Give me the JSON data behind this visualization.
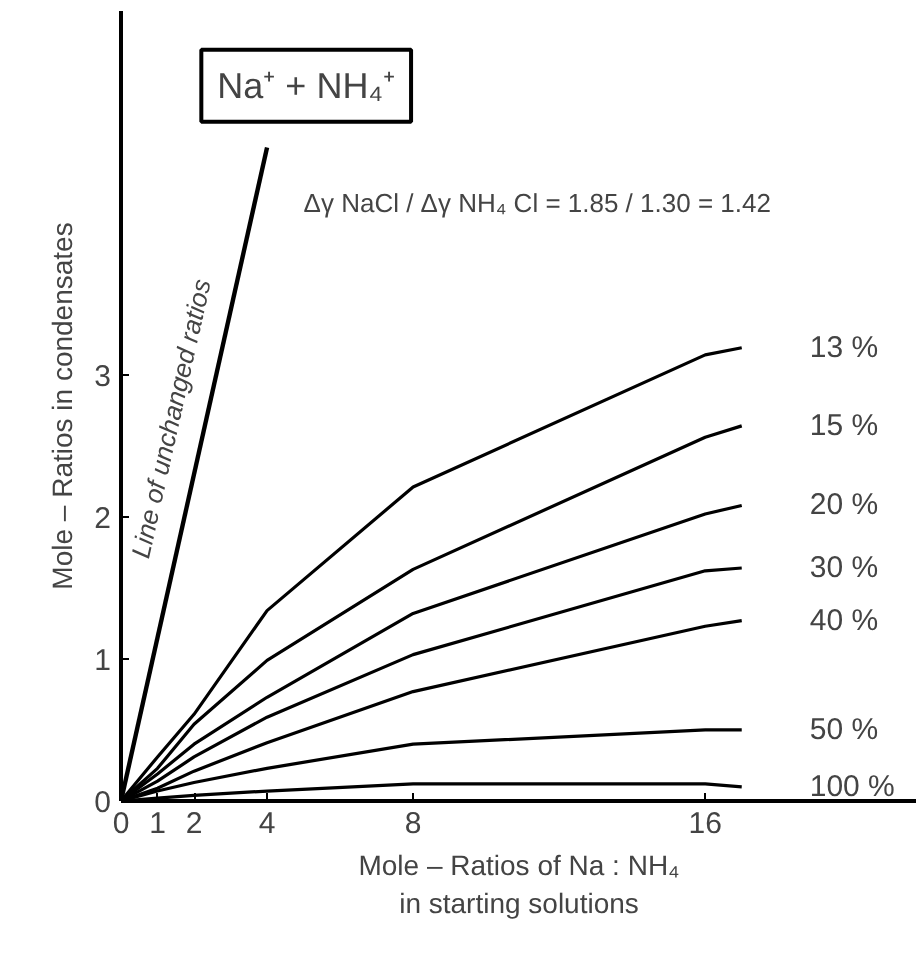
{
  "chart_data": {
    "type": "line",
    "xlabel": "Mole – Ratios of Na : NH₄\nin starting solutions",
    "ylabel": "Mole – Ratios in condensates",
    "xlim": [
      0,
      21.8
    ],
    "ylim": [
      0,
      5.56
    ],
    "xticks": [
      0,
      1,
      2,
      4,
      8,
      16
    ],
    "yticks": [
      0,
      1,
      2,
      3
    ],
    "grid": false,
    "marker": "none",
    "line_style": "solid",
    "annotations": [
      "Na⁺ + NH₄⁺",
      "Δγ NaCl / Δγ NH₄ Cl = 1.85 / 1.30 = 1.42"
    ],
    "x": [
      0,
      1,
      2,
      4,
      8,
      16,
      17
    ],
    "series": [
      {
        "name": "Line of unchanged ratios",
        "color": "#000000",
        "x": [
          0,
          4.0
        ],
        "values": [
          0,
          4.6
        ]
      },
      {
        "name": "13 %",
        "color": "#000000",
        "values": [
          0,
          0.31,
          0.61,
          1.34,
          2.21,
          3.14,
          3.19
        ]
      },
      {
        "name": "15 %",
        "color": "#000000",
        "values": [
          0,
          0.23,
          0.54,
          0.99,
          1.63,
          2.56,
          2.64
        ]
      },
      {
        "name": "20 %",
        "color": "#000000",
        "values": [
          0,
          0.19,
          0.4,
          0.73,
          1.32,
          2.02,
          2.08
        ]
      },
      {
        "name": "30 %",
        "color": "#000000",
        "values": [
          0,
          0.14,
          0.31,
          0.59,
          1.03,
          1.62,
          1.64
        ]
      },
      {
        "name": "40 %",
        "color": "#000000",
        "values": [
          0,
          0.09,
          0.21,
          0.41,
          0.77,
          1.23,
          1.27
        ]
      },
      {
        "name": "50 %",
        "color": "#000000",
        "values": [
          0,
          0.07,
          0.13,
          0.23,
          0.4,
          0.5,
          0.5
        ]
      },
      {
        "name": "100 %",
        "color": "#000000",
        "values": [
          0,
          0.02,
          0.04,
          0.07,
          0.12,
          0.12,
          0.1
        ]
      }
    ]
  }
}
